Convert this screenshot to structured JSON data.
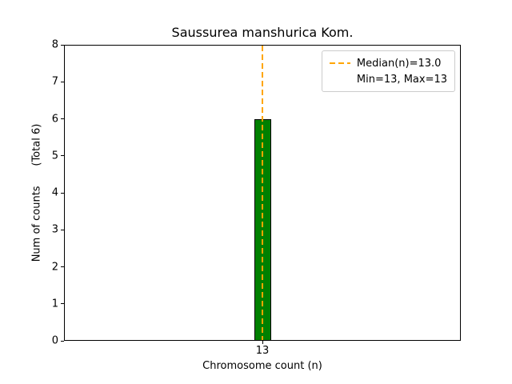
{
  "chart_data": {
    "type": "bar",
    "title": "Saussurea manshurica Kom.",
    "xlabel": "Chromosome count (n)",
    "ylabel": "Num of counts      (Total 6)",
    "total_counts": 6,
    "categories": [
      "13"
    ],
    "values": [
      6
    ],
    "ylim": [
      0,
      8
    ],
    "yticks": [
      0,
      1,
      2,
      3,
      4,
      5,
      6,
      7,
      8
    ],
    "median": 13.0,
    "min": 13,
    "max": 13,
    "legend": [
      "Median(n)=13.0",
      "Min=13, Max=13"
    ],
    "legend_position": "upper right",
    "grid": false,
    "colors": {
      "bar_fill": "#008000",
      "bar_edge": "#000000",
      "median_line": "#FFA500",
      "axes": "#000000",
      "background": "#FFFFFF",
      "legend_border": "#CCCCCC"
    }
  }
}
